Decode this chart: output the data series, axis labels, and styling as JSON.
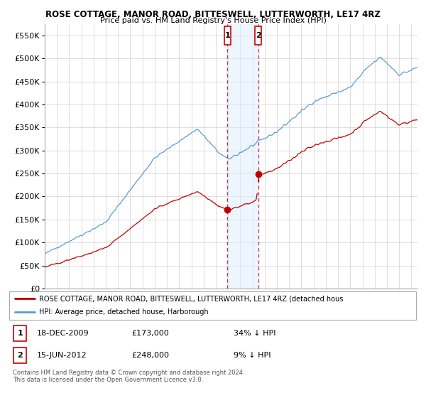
{
  "title": "ROSE COTTAGE, MANOR ROAD, BITTESWELL, LUTTERWORTH, LE17 4RZ",
  "subtitle": "Price paid vs. HM Land Registry's House Price Index (HPI)",
  "legend_line1": "ROSE COTTAGE, MANOR ROAD, BITTESWELL, LUTTERWORTH, LE17 4RZ (detached hous",
  "legend_line2": "HPI: Average price, detached house, Harborough",
  "footnote1": "Contains HM Land Registry data © Crown copyright and database right 2024.",
  "footnote2": "This data is licensed under the Open Government Licence v3.0.",
  "transaction1_date": "18-DEC-2009",
  "transaction1_price": "£173,000",
  "transaction1_hpi": "34% ↓ HPI",
  "transaction2_date": "15-JUN-2012",
  "transaction2_price": "£248,000",
  "transaction2_hpi": "9% ↓ HPI",
  "ylim": [
    0,
    575000
  ],
  "yticks": [
    0,
    50000,
    100000,
    150000,
    200000,
    250000,
    300000,
    350000,
    400000,
    450000,
    500000,
    550000
  ],
  "hpi_color": "#5b9bd5",
  "price_color": "#c00000",
  "transaction_x1": 2009.958,
  "transaction_x2": 2012.458,
  "span_color": "#ddeeff",
  "span_alpha": 0.5,
  "background_color": "#ffffff",
  "grid_color": "#d0d0d0",
  "xmin": 1995.0,
  "xmax": 2025.5
}
